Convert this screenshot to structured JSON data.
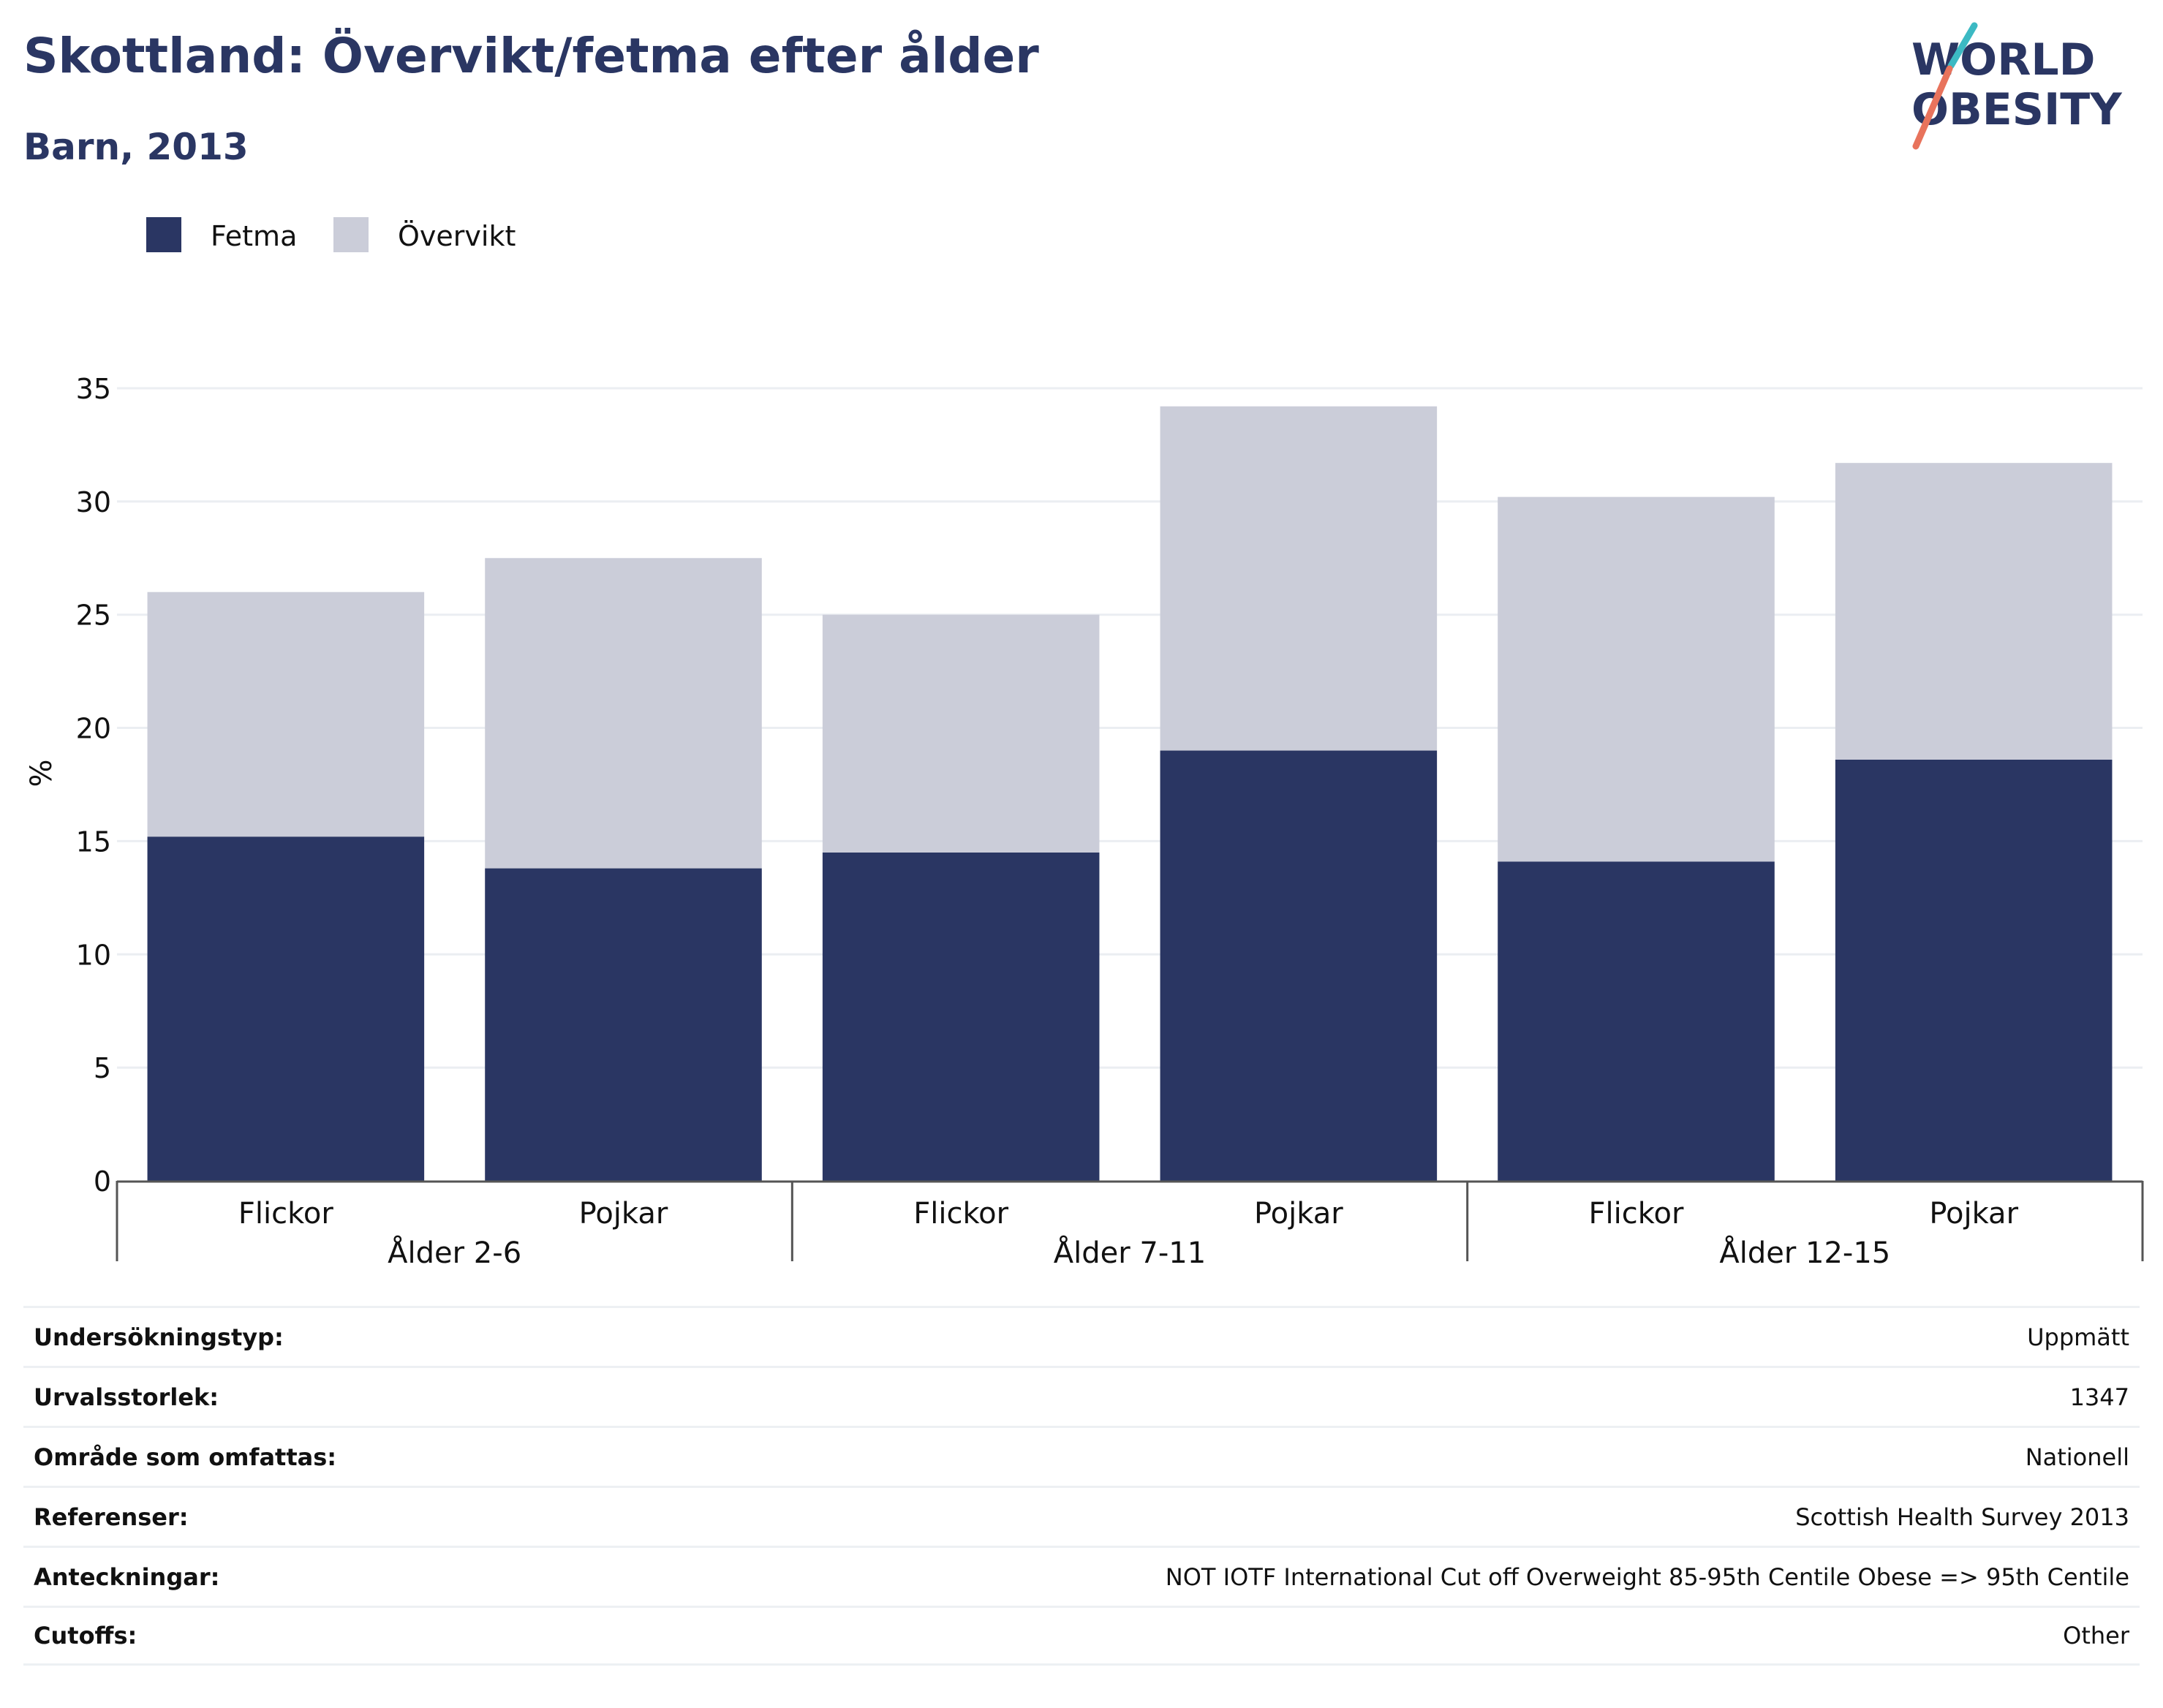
{
  "title": "Skottland: Övervikt/fetma efter ålder",
  "subtitle": "Barn, 2013",
  "logo": {
    "line1": "WORLD",
    "line2": "OBESITY"
  },
  "colors": {
    "text": "#2a3663",
    "fetma": "#2a3663",
    "overvikt": "#cbcdd9",
    "grid": "#ebeef2",
    "axis": "#555555",
    "logo_teal": "#3cb9c3",
    "logo_coral": "#e8735c"
  },
  "chart_data": {
    "type": "bar",
    "stacked": true,
    "ylabel": "%",
    "ylim": [
      0,
      36
    ],
    "yticks": [
      0,
      5,
      10,
      15,
      20,
      25,
      30,
      35
    ],
    "grid": true,
    "legend_position": "top-left",
    "categories": [
      "Flickor",
      "Pojkar",
      "Flickor",
      "Pojkar",
      "Flickor",
      "Pojkar"
    ],
    "groups": [
      {
        "label": "Ålder 2-6",
        "size": 2
      },
      {
        "label": "Ålder 7-11",
        "size": 2
      },
      {
        "label": "Ålder 12-15",
        "size": 2
      }
    ],
    "series": [
      {
        "name": "Fetma",
        "values": [
          15.2,
          13.8,
          14.5,
          19.0,
          14.1,
          18.6
        ]
      },
      {
        "name": "Övervikt",
        "values": [
          10.8,
          13.7,
          10.5,
          15.2,
          16.1,
          13.1
        ]
      }
    ]
  },
  "metadata": [
    {
      "label": "Undersökningstyp:",
      "value": "Uppmätt"
    },
    {
      "label": "Urvalsstorlek:",
      "value": "1347"
    },
    {
      "label": "Område som omfattas:",
      "value": "Nationell"
    },
    {
      "label": "Referenser:",
      "value": "Scottish Health Survey 2013"
    },
    {
      "label": "Anteckningar:",
      "value": "NOT IOTF International Cut off Overweight 85-95th Centile Obese => 95th Centile"
    },
    {
      "label": "Cutoffs:",
      "value": "Other"
    }
  ]
}
